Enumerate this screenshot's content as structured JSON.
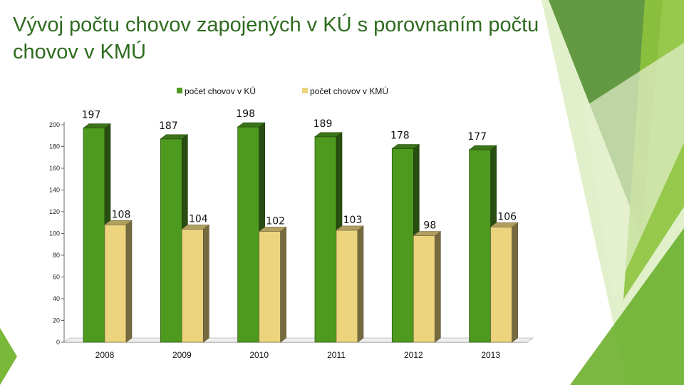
{
  "title": "Vývoj počtu chovov zapojených v KÚ s porovnaním počtu chovov v KMÚ",
  "chart_data": {
    "type": "bar",
    "categories": [
      "2008",
      "2009",
      "2010",
      "2011",
      "2012",
      "2013"
    ],
    "series": [
      {
        "name": "počet chovov v KÚ",
        "values": [
          197,
          187,
          198,
          189,
          178,
          177
        ],
        "color": "#4e9a1f"
      },
      {
        "name": "počet chovov v KMÚ",
        "values": [
          108,
          104,
          102,
          103,
          98,
          106
        ],
        "color": "#ecd47e"
      }
    ],
    "yticks": [
      0,
      20,
      40,
      60,
      80,
      100,
      120,
      140,
      160,
      180,
      200
    ],
    "ylim": [
      0,
      200
    ],
    "grid": false,
    "legend_position": "top",
    "style": "3d-clustered-columns"
  }
}
